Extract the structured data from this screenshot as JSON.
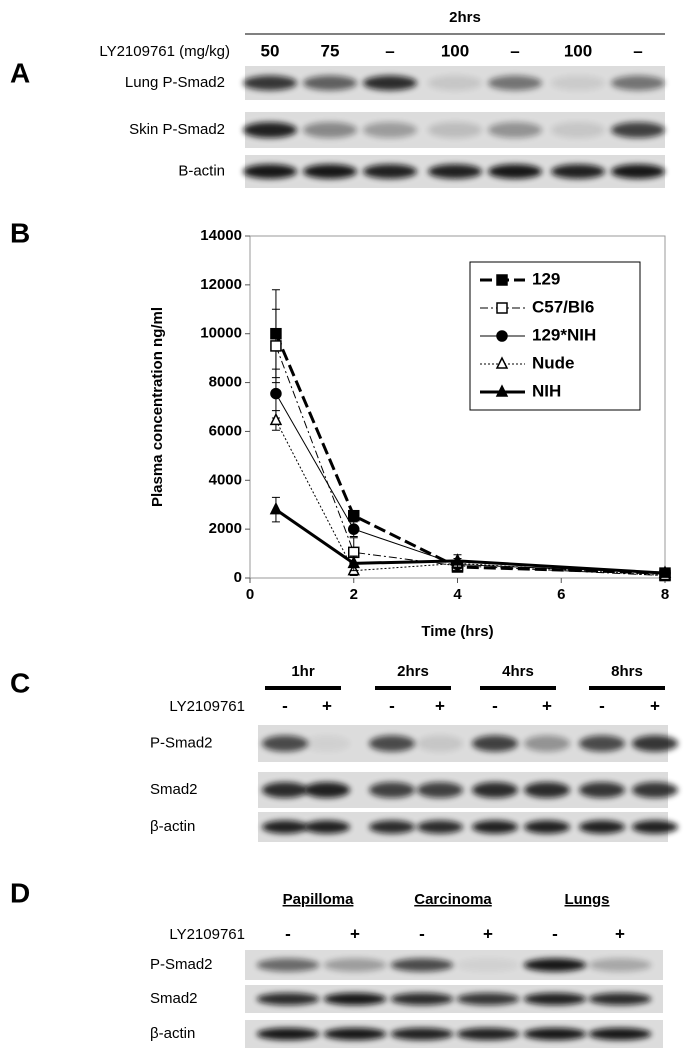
{
  "panel_a": {
    "label": "A",
    "header": "2hrs",
    "treatment_label": "LY2109761 (mg/kg)",
    "lanes": [
      "50",
      "75",
      "–",
      "100",
      "–",
      "100",
      "–"
    ],
    "rows": [
      "Lung P-Smad2",
      "Skin P-Smad2",
      "B-actin"
    ]
  },
  "panel_b": {
    "label": "B"
  },
  "chart_data": {
    "type": "line",
    "xlabel": "Time (hrs)",
    "ylabel": "Plasma concentration  ng/ml",
    "x": [
      0.5,
      2,
      4,
      8
    ],
    "series": [
      {
        "name": "129",
        "color": "#000000",
        "marker": "square",
        "filled": true,
        "line_style": "dashed",
        "line_width": 3,
        "values": [
          10000,
          2550,
          450,
          200
        ],
        "errors": [
          1800,
          200,
          200,
          50
        ]
      },
      {
        "name": "C57/Bl6",
        "color": "#000000",
        "marker": "square",
        "filled": false,
        "line_style": "dashdot",
        "line_width": 1,
        "values": [
          9500,
          1050,
          500,
          100
        ],
        "errors": [
          1500,
          600,
          150,
          50
        ]
      },
      {
        "name": "129*NIH",
        "color": "#000000",
        "marker": "circle",
        "filled": true,
        "line_style": "solid",
        "line_width": 1,
        "values": [
          7550,
          2000,
          550,
          200
        ],
        "errors": [
          1000,
          300,
          150,
          50
        ]
      },
      {
        "name": "Nude",
        "color": "#000000",
        "marker": "triangle",
        "filled": false,
        "line_style": "dotted",
        "line_width": 1,
        "values": [
          6450,
          300,
          600,
          100
        ],
        "errors": [
          400,
          200,
          200,
          50
        ]
      },
      {
        "name": "NIH",
        "color": "#000000",
        "marker": "triangle",
        "filled": true,
        "line_style": "solid",
        "line_width": 3,
        "values": [
          2800,
          600,
          700,
          200
        ],
        "errors": [
          500,
          300,
          250,
          50
        ]
      }
    ],
    "xlim": [
      0,
      8
    ],
    "xticks": [
      0,
      2,
      4,
      6,
      8
    ],
    "ylim": [
      0,
      14000
    ],
    "yticks": [
      0,
      2000,
      4000,
      6000,
      8000,
      10000,
      12000,
      14000
    ],
    "grid": false,
    "legend": "upper right"
  },
  "panel_c": {
    "label": "C",
    "groups": [
      "1hr",
      "2hrs",
      "4hrs",
      "8hrs"
    ],
    "treatment_label": "LY2109761",
    "lanes": [
      "-",
      "+",
      "-",
      "+",
      "-",
      "+",
      "-",
      "+"
    ],
    "rows": [
      "P-Smad2",
      "Smad2",
      "β-actin"
    ]
  },
  "panel_d": {
    "label": "D",
    "groups": [
      "Papilloma",
      "Carcinoma",
      "Lungs"
    ],
    "treatment_label": "LY2109761",
    "lanes": [
      "-",
      "+",
      "-",
      "+",
      "-",
      "+"
    ],
    "rows": [
      "P-Smad2",
      "Smad2",
      "β-actin"
    ]
  }
}
